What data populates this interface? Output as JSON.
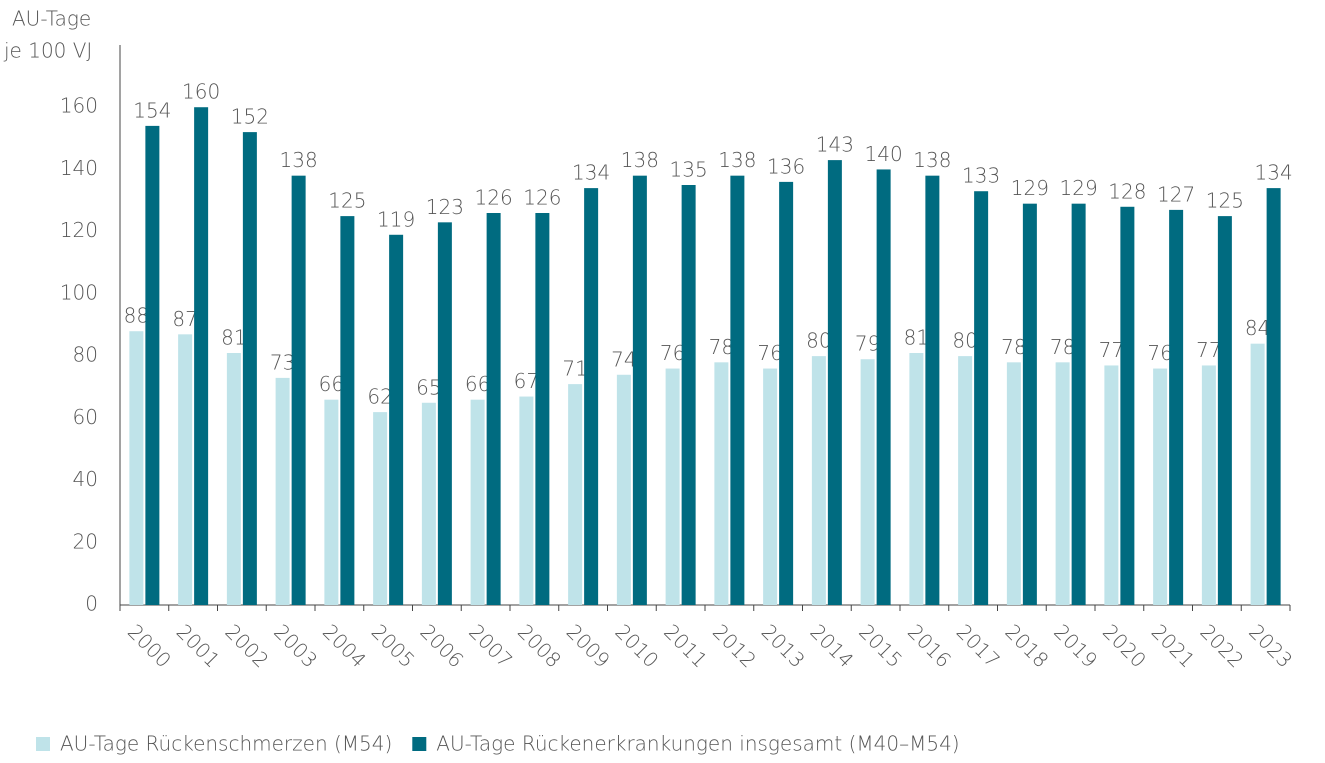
{
  "chart_data": {
    "type": "bar",
    "y_label": [
      "AU-Tage",
      "je 100 VJ"
    ],
    "categories": [
      "2000",
      "2001",
      "2002",
      "2003",
      "2004",
      "2005",
      "2006",
      "2007",
      "2008",
      "2009",
      "2010",
      "2011",
      "2012",
      "2013",
      "2014",
      "2015",
      "2016",
      "2017",
      "2018",
      "2019",
      "2020",
      "2021",
      "2022",
      "2023"
    ],
    "series": [
      {
        "name": "AU-Tage Rückenschmerzen (M54)",
        "color": "#bfe3e9",
        "values": [
          88,
          87,
          81,
          73,
          66,
          62,
          65,
          66,
          67,
          71,
          74,
          76,
          78,
          76,
          80,
          79,
          81,
          80,
          78,
          78,
          77,
          76,
          77,
          84
        ]
      },
      {
        "name": "AU-Tage Rückenerkrankungen insgesamt (M40–M54)",
        "color": "#006b80",
        "values": [
          154,
          160,
          152,
          138,
          125,
          119,
          123,
          126,
          126,
          134,
          138,
          135,
          138,
          136,
          143,
          140,
          138,
          133,
          129,
          129,
          128,
          127,
          125,
          134
        ]
      }
    ],
    "ylim": [
      0,
      180
    ],
    "yticks": [
      0,
      20,
      40,
      60,
      80,
      100,
      120,
      140,
      160
    ],
    "grid": false,
    "legend": "bottom"
  }
}
